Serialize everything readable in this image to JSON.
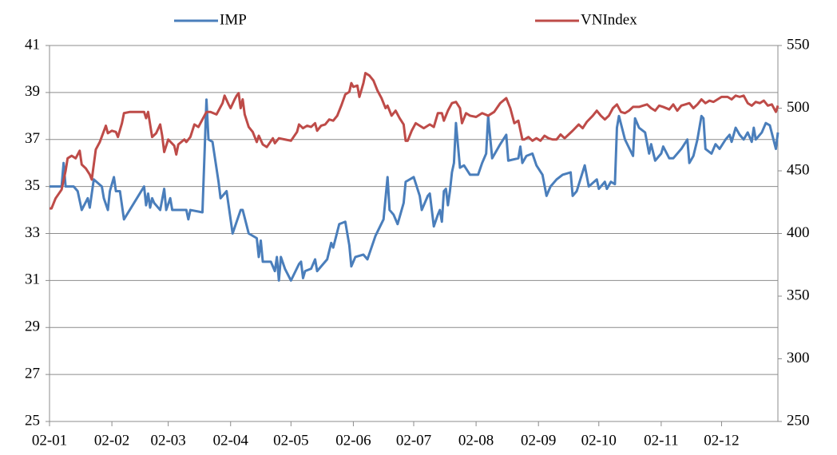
{
  "chart_data": {
    "type": "line",
    "xlim": [
      0,
      362
    ],
    "xticks": [
      {
        "value": 0,
        "label": "02-01"
      },
      {
        "value": 31,
        "label": "02-02"
      },
      {
        "value": 59,
        "label": "02-03"
      },
      {
        "value": 90,
        "label": "02-04"
      },
      {
        "value": 120,
        "label": "02-05"
      },
      {
        "value": 151,
        "label": "02-06"
      },
      {
        "value": 181,
        "label": "02-07"
      },
      {
        "value": 212,
        "label": "02-08"
      },
      {
        "value": 243,
        "label": "02-09"
      },
      {
        "value": 273,
        "label": "02-10"
      },
      {
        "value": 304,
        "label": "02-11"
      },
      {
        "value": 334,
        "label": "02-12"
      }
    ],
    "ylim": [
      25,
      41
    ],
    "yticks": [
      25,
      27,
      29,
      31,
      33,
      35,
      37,
      39,
      41
    ],
    "y2lim": [
      250,
      550
    ],
    "y2ticks": [
      250,
      300,
      350,
      400,
      450,
      500,
      550
    ],
    "grid": true,
    "legend": "top",
    "series": [
      {
        "name": "IMP",
        "color": "#4a7ebb",
        "x": [
          0,
          6,
          7,
          8,
          12,
          14,
          16,
          19,
          20,
          22,
          26,
          27,
          29,
          30,
          32,
          33,
          35,
          37,
          47,
          48,
          49,
          50,
          51,
          52,
          55,
          57,
          58,
          60,
          61,
          66,
          68,
          69,
          70,
          76,
          78,
          79,
          81,
          84,
          85,
          88,
          89,
          91,
          95,
          96,
          99,
          103,
          104,
          105,
          106,
          110,
          112,
          113,
          114,
          115,
          117,
          120,
          124,
          125,
          126,
          127,
          130,
          132,
          133,
          136,
          138,
          140,
          141,
          144,
          147,
          149,
          150,
          152,
          156,
          158,
          162,
          166,
          168,
          169,
          171,
          173,
          176,
          177,
          181,
          184,
          185,
          188,
          189,
          191,
          193,
          194,
          195,
          196,
          197,
          198,
          199,
          200,
          201,
          202,
          204,
          206,
          209,
          213,
          215,
          217,
          218,
          220,
          224,
          227,
          228,
          233,
          234,
          235,
          237,
          240,
          242,
          245,
          247,
          249,
          252,
          255,
          259,
          260,
          262,
          266,
          268,
          272,
          273,
          276,
          277,
          279,
          281,
          282,
          283,
          286,
          290,
          291,
          293,
          296,
          298,
          299,
          301,
          304,
          305,
          308,
          310,
          314,
          317,
          318,
          320,
          322,
          324,
          325,
          326,
          329,
          331,
          333,
          336,
          338,
          339,
          341,
          343,
          345,
          347,
          349,
          350,
          351,
          354,
          356,
          358,
          361,
          362
        ],
        "values": [
          35,
          35,
          36,
          35,
          35,
          34.8,
          34,
          34.5,
          34.1,
          35.3,
          35,
          34.5,
          34,
          34.8,
          35.4,
          34.8,
          34.8,
          33.6,
          35,
          34.2,
          34.7,
          34.1,
          34.5,
          34.3,
          34,
          34.9,
          34,
          34.5,
          34,
          34,
          34,
          33.6,
          34,
          33.9,
          38.7,
          37,
          36.9,
          35.2,
          34.5,
          34.8,
          34.2,
          33,
          34,
          34,
          33,
          32.8,
          32,
          32.7,
          31.8,
          31.8,
          31.4,
          32,
          31,
          32,
          31.5,
          31,
          31.7,
          31.8,
          31.1,
          31.4,
          31.5,
          31.9,
          31.4,
          31.7,
          31.9,
          32.6,
          32.4,
          33.4,
          33.5,
          32.5,
          31.6,
          32,
          32.1,
          31.9,
          32.9,
          33.6,
          35.4,
          34,
          33.8,
          33.4,
          34.3,
          35.2,
          35.4,
          34.6,
          34,
          34.6,
          34.7,
          33.3,
          33.8,
          34,
          33.5,
          34.8,
          34.9,
          34.2,
          34.8,
          35.6,
          36,
          37.7,
          35.8,
          35.9,
          35.5,
          35.5,
          36,
          36.4,
          38,
          36.2,
          36.8,
          37.2,
          36.1,
          36.2,
          36.7,
          36,
          36.3,
          36.4,
          35.9,
          35.5,
          34.6,
          35,
          35.3,
          35.5,
          35.6,
          34.6,
          34.8,
          35.9,
          35,
          35.3,
          34.9,
          35.2,
          34.9,
          35.2,
          35.1,
          37.5,
          38,
          37,
          36.3,
          37.9,
          37.5,
          37.3,
          36.4,
          36.8,
          36.1,
          36.4,
          36.7,
          36.2,
          36.2,
          36.6,
          37,
          36,
          36.3,
          37,
          38,
          37.9,
          36.6,
          36.4,
          36.8,
          36.6,
          37,
          37.2,
          36.9,
          37.5,
          37.2,
          37,
          37.3,
          36.9,
          37.5,
          37,
          37.3,
          37.7,
          37.6,
          36.6,
          37.3
        ]
      },
      {
        "name": "VNIndex",
        "color": "#be4b48",
        "axis": "y2",
        "x": [
          0,
          1,
          3,
          6,
          8,
          9,
          11,
          13,
          15,
          16,
          18,
          20,
          21,
          23,
          25,
          28,
          29,
          31,
          33,
          34,
          36,
          37,
          40,
          47,
          48,
          49,
          51,
          53,
          55,
          56,
          57,
          59,
          62,
          63,
          64,
          67,
          68,
          70,
          72,
          74,
          76,
          78,
          80,
          83,
          84,
          86,
          87,
          89,
          90,
          92,
          93,
          94,
          95,
          96,
          97,
          99,
          101,
          103,
          104,
          106,
          108,
          111,
          112,
          114,
          117,
          120,
          123,
          124,
          126,
          128,
          130,
          132,
          133,
          135,
          137,
          139,
          141,
          143,
          145,
          147,
          149,
          150,
          151,
          153,
          154,
          156,
          157,
          159,
          161,
          163,
          165,
          167,
          168,
          170,
          172,
          174,
          176,
          177,
          178,
          180,
          182,
          184,
          186,
          189,
          191,
          193,
          195,
          196,
          198,
          200,
          202,
          204,
          205,
          207,
          209,
          212,
          215,
          218,
          221,
          224,
          227,
          229,
          231,
          233,
          235,
          236,
          238,
          240,
          242,
          244,
          246,
          248,
          250,
          252,
          254,
          256,
          258,
          260,
          263,
          265,
          267,
          270,
          272,
          274,
          276,
          278,
          280,
          282,
          284,
          286,
          288,
          290,
          293,
          295,
          297,
          299,
          301,
          303,
          305,
          308,
          310,
          312,
          314,
          316,
          318,
          320,
          322,
          324,
          326,
          328,
          330,
          332,
          334,
          337,
          339,
          341,
          343,
          345,
          347,
          349,
          351,
          353,
          355,
          357,
          359,
          361,
          362
        ],
        "values": [
          420,
          420,
          428,
          435,
          450,
          460,
          462,
          460,
          466,
          455,
          452,
          447,
          443,
          467,
          473,
          486,
          480,
          482,
          481,
          477,
          488,
          496,
          497,
          497,
          492,
          497,
          477,
          480,
          487,
          478,
          465,
          475,
          470,
          463,
          471,
          475,
          473,
          477,
          487,
          485,
          491,
          497,
          497,
          495,
          498,
          504,
          510,
          503,
          500,
          507,
          510,
          512,
          500,
          507,
          495,
          485,
          481,
          473,
          478,
          471,
          469,
          476,
          472,
          476,
          475,
          474,
          481,
          487,
          484,
          486,
          485,
          488,
          482,
          486,
          487,
          491,
          490,
          494,
          502,
          511,
          513,
          520,
          517,
          518,
          509,
          520,
          528,
          526,
          522,
          514,
          508,
          500,
          502,
          494,
          498,
          492,
          487,
          474,
          474,
          482,
          488,
          486,
          484,
          487,
          485,
          496,
          496,
          490,
          498,
          504,
          505,
          500,
          488,
          496,
          494,
          493,
          496,
          494,
          497,
          504,
          508,
          500,
          488,
          490,
          475,
          475,
          477,
          474,
          476,
          474,
          478,
          476,
          475,
          475,
          479,
          476,
          479,
          482,
          487,
          484,
          489,
          494,
          498,
          494,
          491,
          494,
          500,
          503,
          497,
          496,
          498,
          501,
          501,
          502,
          503,
          500,
          498,
          502,
          501,
          499,
          503,
          498,
          502,
          503,
          504,
          500,
          503,
          507,
          504,
          506,
          505,
          507,
          509,
          509,
          507,
          510,
          509,
          510,
          504,
          502,
          505,
          504,
          506,
          502,
          503,
          497,
          502
        ]
      }
    ]
  }
}
